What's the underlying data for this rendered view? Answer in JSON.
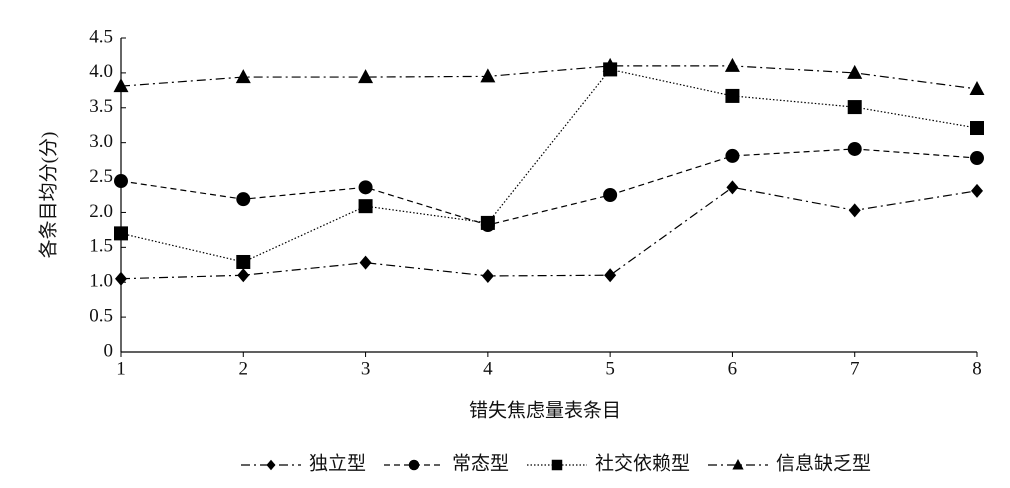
{
  "chart_data": {
    "type": "line",
    "x_label": "错失焦虑量表条目",
    "y_label": "各条目均分(分)",
    "x": [
      1,
      2,
      3,
      4,
      5,
      6,
      7,
      8
    ],
    "xlim": [
      1,
      8
    ],
    "xticks": [
      1,
      2,
      3,
      4,
      5,
      6,
      7,
      8
    ],
    "ylim": [
      0,
      4.5
    ],
    "yticks": [
      0,
      0.5,
      {
        "value": 1,
        "label": "1.0"
      },
      1.5,
      {
        "value": 2,
        "label": "2.0"
      },
      2.5,
      {
        "value": 3,
        "label": "3.0"
      },
      3.5,
      {
        "value": 4,
        "label": "4.0"
      },
      4.5
    ],
    "grid": false,
    "legend": "bottom",
    "series": [
      {
        "name": "独立型",
        "color": "#000000",
        "marker": "diamond",
        "line_style": "dashdot",
        "values": [
          1.05,
          1.1,
          1.28,
          1.09,
          1.1,
          2.36,
          2.03,
          2.31
        ]
      },
      {
        "name": "常态型",
        "color": "#000000",
        "marker": "circle",
        "line_style": "dashed",
        "values": [
          2.45,
          2.19,
          2.36,
          1.82,
          2.25,
          2.81,
          2.91,
          2.78
        ]
      },
      {
        "name": "社交依赖型",
        "color": "#000000",
        "marker": "square",
        "line_style": "dotted",
        "values": [
          1.7,
          1.29,
          2.09,
          1.85,
          4.05,
          3.67,
          3.51,
          3.21
        ]
      },
      {
        "name": "信息缺乏型",
        "color": "#000000",
        "marker": "triangle",
        "line_style": "dashdot",
        "values": [
          3.81,
          3.94,
          3.94,
          3.95,
          4.1,
          4.1,
          4.0,
          3.77
        ]
      }
    ]
  }
}
